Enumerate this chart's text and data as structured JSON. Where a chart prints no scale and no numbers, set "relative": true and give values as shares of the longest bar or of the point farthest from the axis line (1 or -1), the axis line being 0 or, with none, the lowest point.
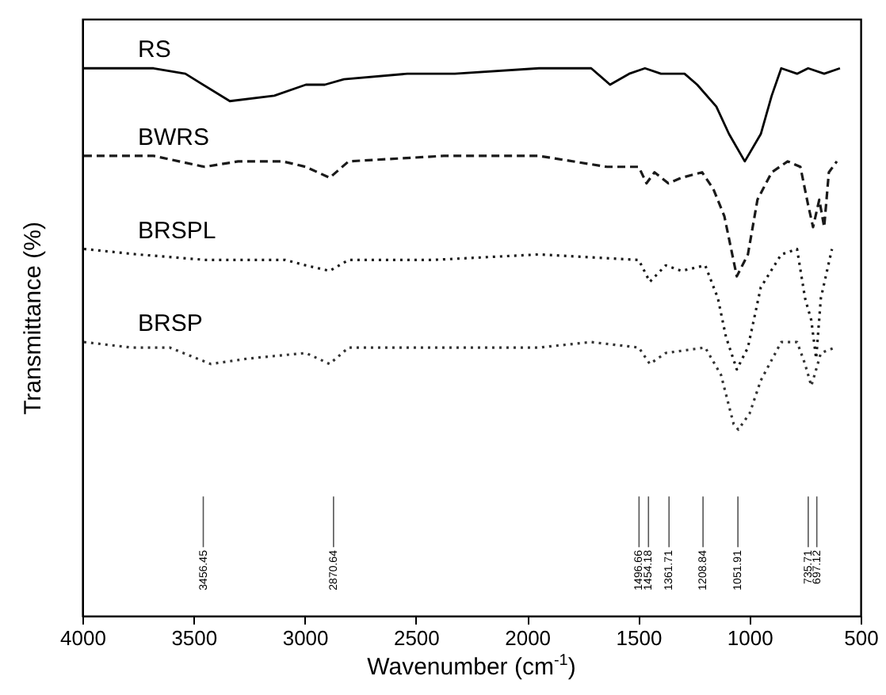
{
  "chart_data": {
    "type": "line",
    "relative": true,
    "xlabel": "Wavenumber (cm$^{-1}$)",
    "ylabel": "Transmittance (%)",
    "xlim": [
      4000,
      500
    ],
    "xticks": [
      4000,
      3500,
      3000,
      2500,
      2000,
      1500,
      1000,
      500
    ],
    "marker": "none",
    "series": [
      {
        "name": "RS",
        "color": "#000000",
        "line_style": "solid",
        "x": [
          3993,
          3680,
          3537,
          3337,
          3137,
          2995,
          2910,
          2824,
          2539,
          2325,
          1947,
          1712,
          1627,
          1541,
          1470,
          1398,
          1292,
          1235,
          1149,
          1092,
          1021,
          949,
          900,
          857,
          786,
          736,
          664,
          593
        ],
        "values": [
          1.0,
          1.0,
          0.99,
          0.94,
          0.95,
          0.97,
          0.97,
          0.98,
          0.99,
          0.99,
          1.0,
          1.0,
          0.97,
          0.99,
          1.0,
          0.99,
          0.99,
          0.97,
          0.93,
          0.88,
          0.83,
          0.88,
          0.95,
          1.0,
          0.99,
          1.0,
          0.99,
          1.0
        ]
      },
      {
        "name": "BWRS",
        "color": "#1a1a1a",
        "line_style": "dashed",
        "x": [
          3993,
          3680,
          3450,
          3300,
          3100,
          2995,
          2888,
          2803,
          2375,
          1947,
          1641,
          1498,
          1463,
          1427,
          1365,
          1306,
          1213,
          1163,
          1113,
          1057,
          1007,
          964,
          900,
          828,
          771,
          736,
          714,
          686,
          664,
          643,
          607
        ],
        "values": [
          0.84,
          0.84,
          0.82,
          0.83,
          0.83,
          0.82,
          0.8,
          0.83,
          0.84,
          0.84,
          0.82,
          0.82,
          0.79,
          0.81,
          0.79,
          0.8,
          0.81,
          0.78,
          0.73,
          0.62,
          0.66,
          0.76,
          0.81,
          0.83,
          0.82,
          0.75,
          0.71,
          0.76,
          0.71,
          0.81,
          0.83
        ]
      },
      {
        "name": "BRSPL",
        "color": "#1a1a1a",
        "line_style": "dotted",
        "x": [
          3993,
          3751,
          3444,
          3088,
          2995,
          2888,
          2803,
          2425,
          1947,
          1498,
          1448,
          1377,
          1306,
          1199,
          1142,
          1106,
          1057,
          1007,
          949,
          857,
          786,
          750,
          722,
          700,
          679,
          629
        ],
        "values": [
          0.67,
          0.66,
          0.65,
          0.65,
          0.64,
          0.63,
          0.65,
          0.65,
          0.66,
          0.65,
          0.61,
          0.64,
          0.63,
          0.64,
          0.58,
          0.51,
          0.45,
          0.49,
          0.6,
          0.66,
          0.67,
          0.58,
          0.54,
          0.47,
          0.58,
          0.67
        ]
      },
      {
        "name": "BRSP",
        "color": "#333333",
        "line_style": "dotted",
        "x": [
          3993,
          3779,
          3608,
          3423,
          3252,
          2995,
          2888,
          2803,
          2425,
          1947,
          1712,
          1498,
          1448,
          1377,
          1199,
          1128,
          1071,
          1050,
          999,
          949,
          857,
          786,
          750,
          722,
          700,
          679,
          615
        ],
        "values": [
          0.5,
          0.49,
          0.49,
          0.46,
          0.47,
          0.48,
          0.46,
          0.49,
          0.49,
          0.49,
          0.5,
          0.49,
          0.46,
          0.48,
          0.49,
          0.44,
          0.35,
          0.34,
          0.37,
          0.43,
          0.5,
          0.5,
          0.46,
          0.42,
          0.45,
          0.48,
          0.49
        ]
      }
    ],
    "ref_lines": [
      {
        "axis": "x",
        "value": 3456.45,
        "label": "3456.45"
      },
      {
        "axis": "x",
        "value": 2870.64,
        "label": "2870.64"
      },
      {
        "axis": "x",
        "value": 1496.66,
        "label": "1496.66"
      },
      {
        "axis": "x",
        "value": 1454.18,
        "label": "1454.18"
      },
      {
        "axis": "x",
        "value": 1361.71,
        "label": "1361.71"
      },
      {
        "axis": "x",
        "value": 1208.84,
        "label": "1208.84"
      },
      {
        "axis": "x",
        "value": 1051.91,
        "label": "1051.91"
      },
      {
        "axis": "x",
        "value": 735.71,
        "label": "735.71"
      },
      {
        "axis": "x",
        "value": 697.12,
        "label": "697.12"
      }
    ]
  }
}
